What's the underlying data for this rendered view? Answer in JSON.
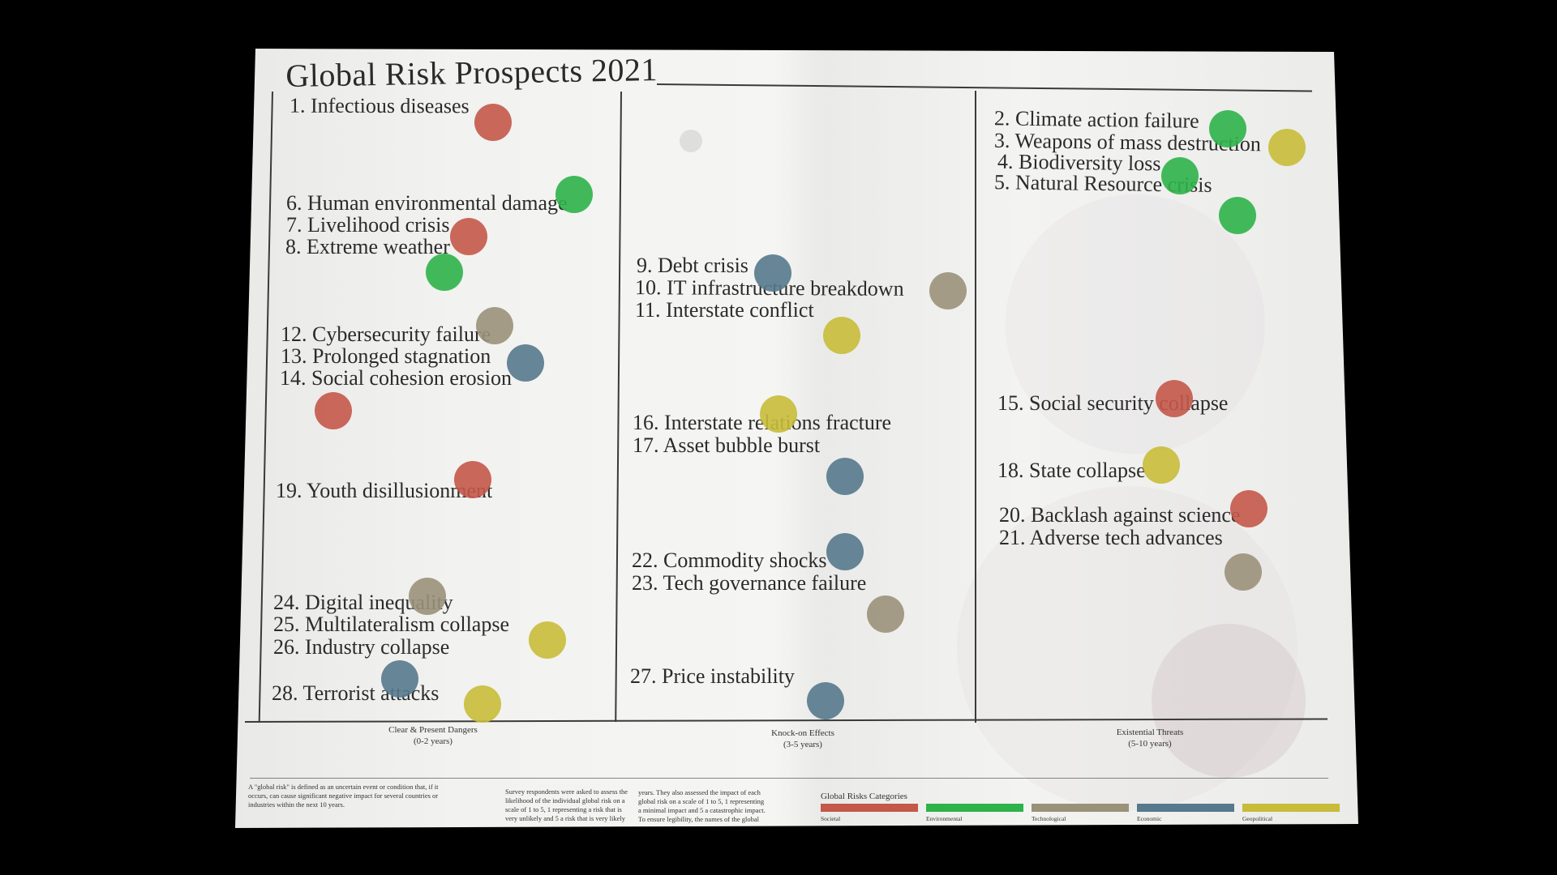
{
  "title": "Global Risk Prospects 2021",
  "colors": {
    "Societal": "#c4584a",
    "Environmental": "#2db34a",
    "Technological": "#9a917a",
    "Economic": "#57798d",
    "Geopolitical": "#c8bc3a"
  },
  "columns": [
    {
      "name": "Clear & Present Dangers",
      "range": "(0-2 years)"
    },
    {
      "name": "Knock-on Effects",
      "range": "(3-5 years)"
    },
    {
      "name": "Existential Threats",
      "range": "(5-10 years)"
    }
  ],
  "risks": [
    {
      "label": "1. Infectious diseases",
      "category": "Societal"
    },
    {
      "label": "2. Climate action failure",
      "category": "Environmental"
    },
    {
      "label": "3. Weapons of mass destruction",
      "category": "Geopolitical"
    },
    {
      "label": "4. Biodiversity loss",
      "category": "Environmental"
    },
    {
      "label": "5. Natural Resource crisis",
      "category": "Environmental"
    },
    {
      "label": "6. Human environmental damage",
      "category": "Environmental"
    },
    {
      "label": "7. Livelihood crisis",
      "category": "Societal"
    },
    {
      "label": "8. Extreme weather",
      "category": "Environmental"
    },
    {
      "label": "9. Debt crisis",
      "category": "Economic"
    },
    {
      "label": "10. IT infrastructure breakdown",
      "category": "Technological"
    },
    {
      "label": "11. Interstate conflict",
      "category": "Geopolitical"
    },
    {
      "label": "12. Cybersecurity failure",
      "category": "Technological"
    },
    {
      "label": "13. Prolonged stagnation",
      "category": "Economic"
    },
    {
      "label": "14. Social cohesion erosion",
      "category": "Societal"
    },
    {
      "label": "15. Social security collapse",
      "category": "Societal"
    },
    {
      "label": "16. Interstate relations fracture",
      "category": "Geopolitical"
    },
    {
      "label": "17. Asset bubble burst",
      "category": "Economic"
    },
    {
      "label": "18. State collapse",
      "category": "Geopolitical"
    },
    {
      "label": "19. Youth disillusionment",
      "category": "Societal"
    },
    {
      "label": "20. Backlash against science",
      "category": "Societal"
    },
    {
      "label": "21. Adverse tech advances",
      "category": "Technological"
    },
    {
      "label": "22. Commodity shocks",
      "category": "Economic"
    },
    {
      "label": "23. Tech governance failure",
      "category": "Technological"
    },
    {
      "label": "24. Digital inequality",
      "category": "Technological"
    },
    {
      "label": "25. Multilateralism collapse",
      "category": "Geopolitical"
    },
    {
      "label": "26. Industry collapse",
      "category": "Economic"
    },
    {
      "label": "27. Price instability",
      "category": "Economic"
    },
    {
      "label": "28. Terrorist attacks",
      "category": "Geopolitical"
    }
  ],
  "footnotes": [
    "A \"global risk\" is defined as an uncertain event or condition that, if it occurs, can cause significant negative impact for several countries or industries within the next 10 years.",
    "Survey respondents were asked to assess the likelihood of the individual global risk on a scale of 1 to 5, 1 representing a risk that is very unlikely and 5 a risk that is very likely to occur over the course of the next ten",
    "years. They also assessed the impact of each global risk on a scale of 1 to 5, 1 representing a minimal impact and 5 a catastrophic impact. To ensure legibility, the names of the global risks are abbreviated"
  ],
  "legend": {
    "title": "Global Risks Categories",
    "items": [
      "Societal",
      "Environmental",
      "Technological",
      "Economic",
      "Geopolitical"
    ]
  }
}
